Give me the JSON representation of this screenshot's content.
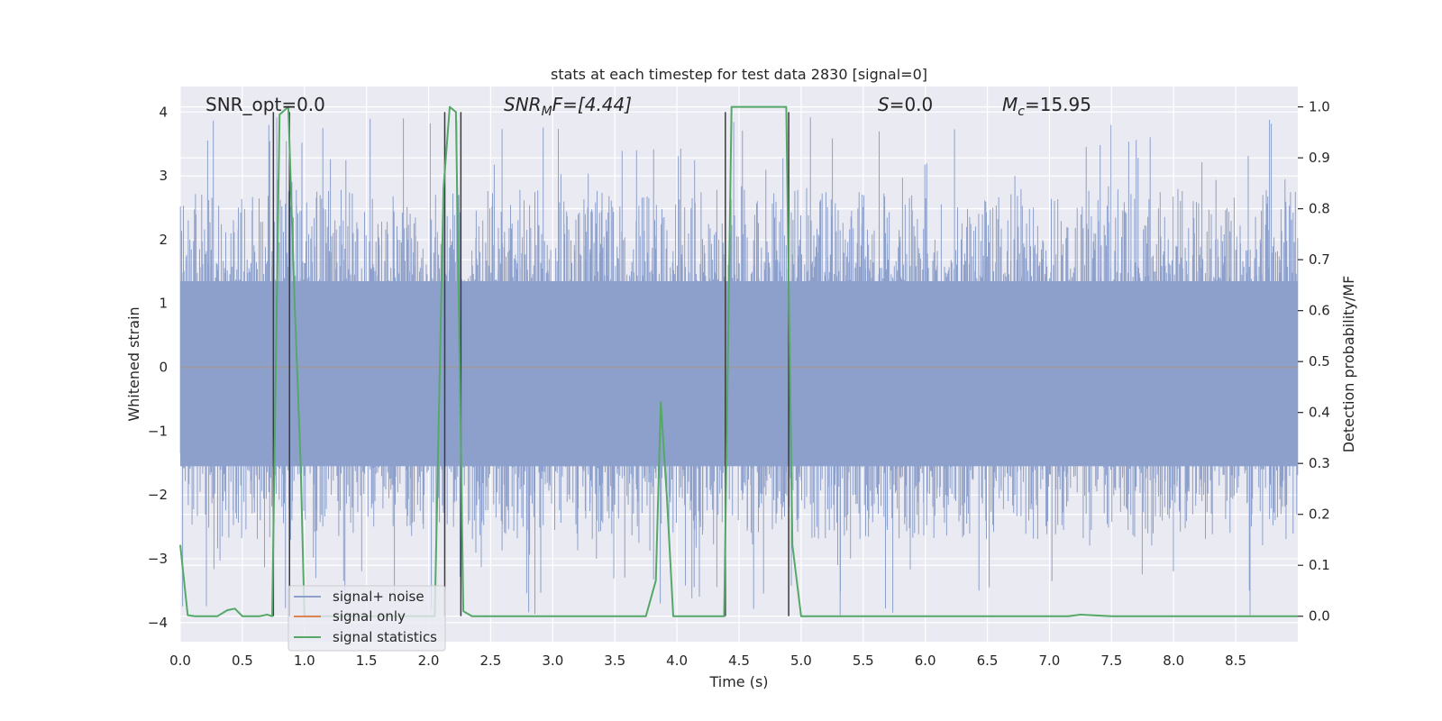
{
  "chart_data": {
    "type": "line",
    "title": "stats at each timestep for test data 2830 [signal=0]",
    "xlabel": "Time (s)",
    "ylabel_left": "Whitened strain",
    "ylabel_right": "Detection probability/MF",
    "xlim": [
      0.0,
      9.0
    ],
    "ylim_left": [
      -4.3,
      4.4
    ],
    "ylim_right": [
      -0.05,
      1.04
    ],
    "x_ticks": [
      "0.0",
      "0.5",
      "1.0",
      "1.5",
      "2.0",
      "2.5",
      "3.0",
      "3.5",
      "4.0",
      "4.5",
      "5.0",
      "5.5",
      "6.0",
      "6.5",
      "7.0",
      "7.5",
      "8.0",
      "8.5"
    ],
    "y_ticks_left": [
      "−4",
      "−3",
      "−2",
      "−1",
      "0",
      "1",
      "2",
      "3",
      "4"
    ],
    "y_ticks_right": [
      "0.0",
      "0.1",
      "0.2",
      "0.3",
      "0.4",
      "0.5",
      "0.6",
      "0.7",
      "0.8",
      "0.9",
      "1.0"
    ],
    "grid": true,
    "annotations": {
      "snr_opt": "SNR_opt=0.0",
      "snr_mf_main": "SNR",
      "snr_mf_sub": "M",
      "snr_mf_rest": "F=[4.44]",
      "s_main": "S",
      "s_rest": "=0.0",
      "mc_main": "M",
      "mc_sub": "c",
      "mc_rest": "=15.95"
    },
    "legend": {
      "placement": "lower-left",
      "entries": [
        "signal+ noise",
        "signal only",
        "signal statistics"
      ]
    },
    "colors": {
      "noise": "#8da0cb",
      "signal_only": "#dd8452",
      "statistics": "#55a868",
      "marker": "#3a3a3a",
      "bg": "#eaeaf2"
    },
    "series": [
      {
        "name": "signal+ noise",
        "axis": "left",
        "description_range": [
          -2.5,
          2.5
        ],
        "spike_range": [
          -3.9,
          4.0
        ]
      },
      {
        "name": "signal only",
        "axis": "left",
        "x": [
          0.0,
          9.0
        ],
        "y": [
          0.0,
          0.0
        ]
      },
      {
        "name": "signal statistics",
        "axis": "right",
        "x": [
          0.0,
          0.06,
          0.12,
          0.2,
          0.3,
          0.38,
          0.44,
          0.5,
          0.56,
          0.64,
          0.7,
          0.74,
          0.8,
          0.87,
          0.92,
          0.97,
          1.0,
          1.1,
          1.4,
          1.7,
          2.0,
          2.05,
          2.12,
          2.17,
          2.22,
          2.28,
          2.35,
          2.42,
          2.6,
          3.0,
          3.4,
          3.75,
          3.83,
          3.87,
          3.92,
          3.97,
          4.1,
          4.3,
          4.38,
          4.44,
          4.5,
          4.7,
          4.83,
          4.88,
          4.93,
          5.0,
          5.5,
          6.0,
          6.5,
          7.0,
          7.15,
          7.25,
          7.5,
          8.0,
          8.5,
          9.0
        ],
        "y": [
          0.14,
          0.002,
          0.0,
          0.0,
          0.0,
          0.012,
          0.015,
          0.0,
          0.0,
          0.0,
          0.003,
          0.0,
          0.985,
          1.0,
          0.62,
          0.3,
          0.0,
          0.0,
          0.0,
          0.0,
          0.0,
          0.0,
          0.84,
          1.0,
          0.99,
          0.01,
          0.0,
          0.0,
          0.0,
          0.0,
          0.0,
          0.0,
          0.07,
          0.42,
          0.23,
          0.0,
          0.0,
          0.0,
          0.0,
          1.0,
          1.0,
          1.0,
          1.0,
          1.0,
          0.14,
          0.0,
          0.0,
          0.0,
          0.0,
          0.0,
          0.0,
          0.003,
          0.0,
          0.0,
          0.0,
          0.0
        ]
      }
    ],
    "marker_lines": [
      0.75,
      0.88,
      2.13,
      2.26,
      4.39,
      4.9
    ]
  }
}
